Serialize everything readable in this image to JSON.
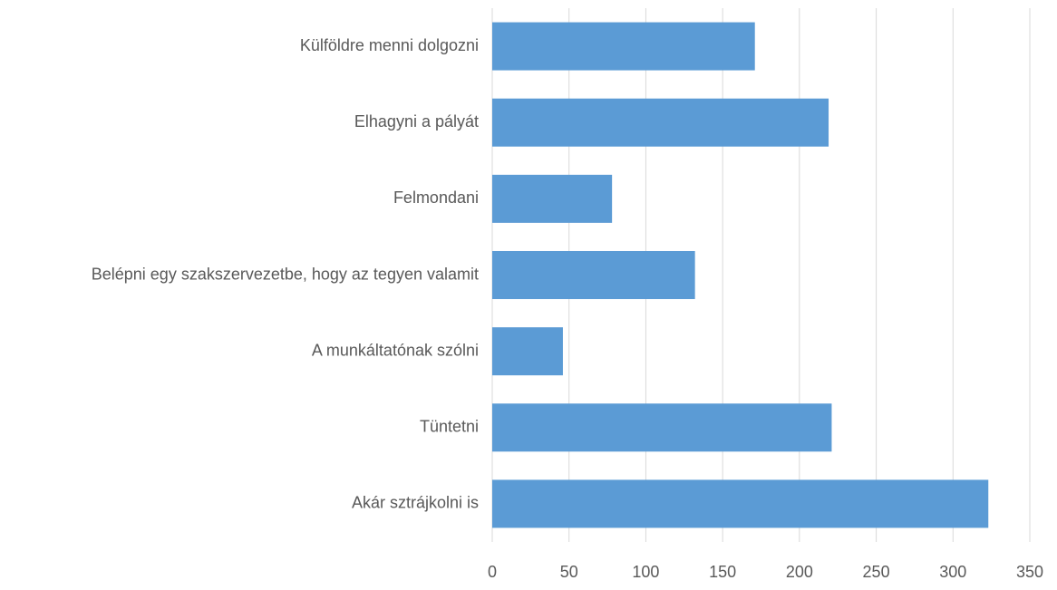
{
  "chart_data": {
    "type": "barh",
    "categories": [
      "Külföldre menni dolgozni",
      "Elhagyni a pályát",
      "Felmondani",
      "Belépni egy szakszervezetbe, hogy az tegyen valamit",
      "A munkáltatónak szólni",
      "Tüntetni",
      "Akár sztrájkolni is"
    ],
    "values": [
      171,
      219,
      78,
      132,
      46,
      221,
      323
    ],
    "color": "#5b9bd5",
    "xlim": [
      0,
      350
    ],
    "xticks": [
      0,
      50,
      100,
      150,
      200,
      250,
      300,
      350
    ],
    "grid": true
  }
}
